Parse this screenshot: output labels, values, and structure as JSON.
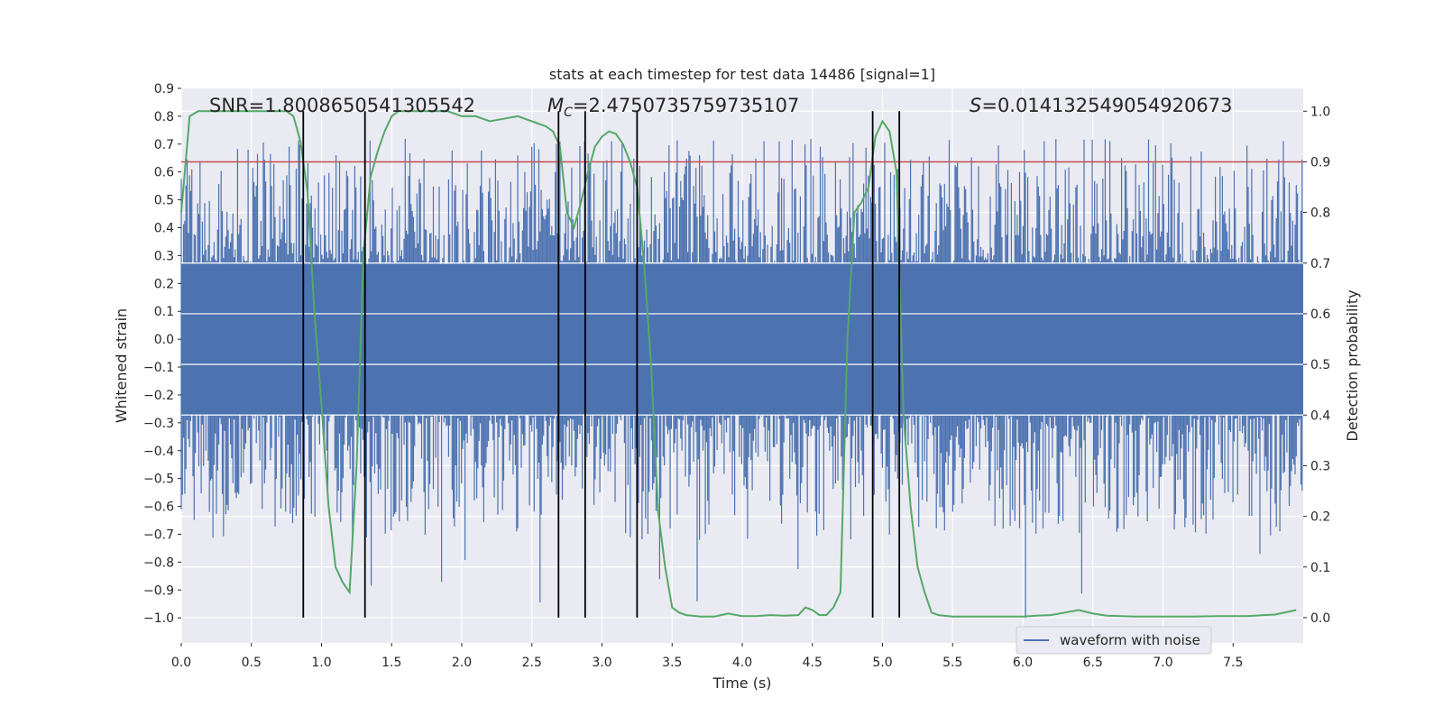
{
  "chart_data": {
    "type": "line",
    "title": "stats at each timestep for test data 14486 [signal=1]",
    "xlabel": "Time (s)",
    "ylabel": "Whitened strain",
    "y2label": "Detection probability",
    "xlim": [
      0.0,
      8.0
    ],
    "ylim": [
      -1.09,
      0.9
    ],
    "y2lim": [
      -0.05,
      1.045
    ],
    "xticks": [
      "0.0",
      "0.5",
      "1.0",
      "1.5",
      "2.0",
      "2.5",
      "3.0",
      "3.5",
      "4.0",
      "4.5",
      "5.0",
      "5.5",
      "6.0",
      "6.5",
      "7.0",
      "7.5"
    ],
    "yticks": [
      "0.9",
      "0.8",
      "0.7",
      "0.6",
      "0.5",
      "0.4",
      "0.3",
      "0.2",
      "0.1",
      "0.0",
      "−0.1",
      "−0.2",
      "−0.3",
      "−0.4",
      "−0.5",
      "−0.6",
      "−0.7",
      "−0.8",
      "−0.9",
      "−1.0"
    ],
    "y2ticks": [
      "1.0",
      "0.9",
      "0.8",
      "0.7",
      "0.6",
      "0.5",
      "0.4",
      "0.3",
      "0.2",
      "0.1",
      "0.0"
    ],
    "grid": true,
    "background_color": "#eaeaf2",
    "annotations": {
      "snr": "SNR=1.8008650541305542",
      "mc_symbol": "M",
      "mc_subscript": "C",
      "mc_value": "=2.4750735759735107",
      "s_symbol": "S",
      "s_value": "=0.014132549054920673"
    },
    "legend": {
      "position": "lower-right",
      "entries": [
        "waveform with noise"
      ]
    },
    "threshold": {
      "value": 0.9,
      "axis": "y2",
      "color": "#c44e52"
    },
    "vlines": [
      0.87,
      1.31,
      2.69,
      2.88,
      3.25,
      4.93,
      5.12
    ],
    "series": [
      {
        "name": "waveform with noise",
        "axis": "y",
        "color": "#4c72b0",
        "envelope": {
          "dense_abs": 0.27,
          "spike_max": 0.72,
          "spike_min": -1.0
        }
      },
      {
        "axis": "y2",
        "color": "#55a868",
        "x": [
          0.0,
          0.06,
          0.12,
          0.2,
          0.3,
          0.4,
          0.5,
          0.6,
          0.7,
          0.75,
          0.8,
          0.85,
          0.9,
          0.95,
          1.0,
          1.05,
          1.1,
          1.15,
          1.2,
          1.25,
          1.3,
          1.35,
          1.4,
          1.45,
          1.5,
          1.55,
          1.6,
          1.7,
          1.8,
          1.9,
          2.0,
          2.1,
          2.2,
          2.3,
          2.4,
          2.5,
          2.6,
          2.65,
          2.7,
          2.75,
          2.8,
          2.85,
          2.9,
          2.95,
          3.0,
          3.05,
          3.1,
          3.15,
          3.2,
          3.25,
          3.3,
          3.35,
          3.4,
          3.45,
          3.5,
          3.55,
          3.6,
          3.7,
          3.8,
          3.9,
          4.0,
          4.1,
          4.2,
          4.3,
          4.4,
          4.45,
          4.5,
          4.55,
          4.6,
          4.65,
          4.7,
          4.75,
          4.8,
          4.85,
          4.9,
          4.95,
          5.0,
          5.05,
          5.1,
          5.15,
          5.2,
          5.25,
          5.3,
          5.35,
          5.4,
          5.5,
          5.6,
          5.7,
          5.8,
          5.9,
          6.0,
          6.1,
          6.2,
          6.3,
          6.4,
          6.5,
          6.6,
          6.8,
          7.0,
          7.2,
          7.4,
          7.6,
          7.8,
          7.95
        ],
        "y": [
          0.8,
          0.99,
          1.0,
          1.0,
          1.0,
          1.0,
          1.0,
          1.0,
          1.0,
          1.0,
          0.99,
          0.94,
          0.84,
          0.6,
          0.42,
          0.22,
          0.1,
          0.07,
          0.05,
          0.3,
          0.72,
          0.87,
          0.92,
          0.96,
          0.99,
          1.0,
          1.0,
          1.0,
          1.0,
          1.0,
          0.99,
          0.99,
          0.98,
          0.985,
          0.99,
          0.98,
          0.97,
          0.96,
          0.93,
          0.8,
          0.77,
          0.82,
          0.88,
          0.93,
          0.95,
          0.96,
          0.955,
          0.935,
          0.9,
          0.85,
          0.7,
          0.5,
          0.21,
          0.1,
          0.02,
          0.01,
          0.005,
          0.002,
          0.002,
          0.008,
          0.003,
          0.003,
          0.005,
          0.004,
          0.005,
          0.02,
          0.015,
          0.005,
          0.005,
          0.02,
          0.05,
          0.55,
          0.8,
          0.82,
          0.85,
          0.95,
          0.98,
          0.96,
          0.88,
          0.4,
          0.22,
          0.1,
          0.05,
          0.01,
          0.005,
          0.002,
          0.002,
          0.002,
          0.002,
          0.002,
          0.002,
          0.004,
          0.005,
          0.01,
          0.015,
          0.008,
          0.004,
          0.002,
          0.002,
          0.002,
          0.003,
          0.003,
          0.006,
          0.015
        ]
      }
    ]
  }
}
